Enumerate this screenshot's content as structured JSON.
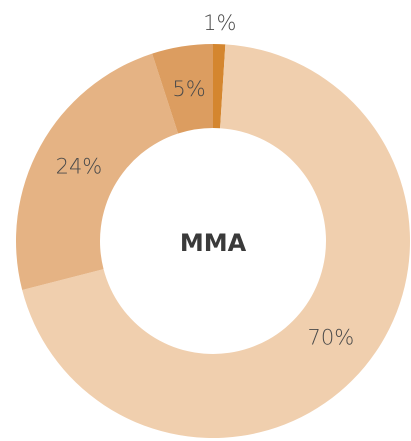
{
  "chart_data": {
    "type": "donut",
    "center_label": "MMA",
    "values": [
      1,
      70,
      24,
      5
    ],
    "value_labels": [
      "1%",
      "70%",
      "24%",
      "5%"
    ],
    "colors": [
      "#d4862f",
      "#f0cfae",
      "#e5b384",
      "#dc9d60"
    ]
  }
}
